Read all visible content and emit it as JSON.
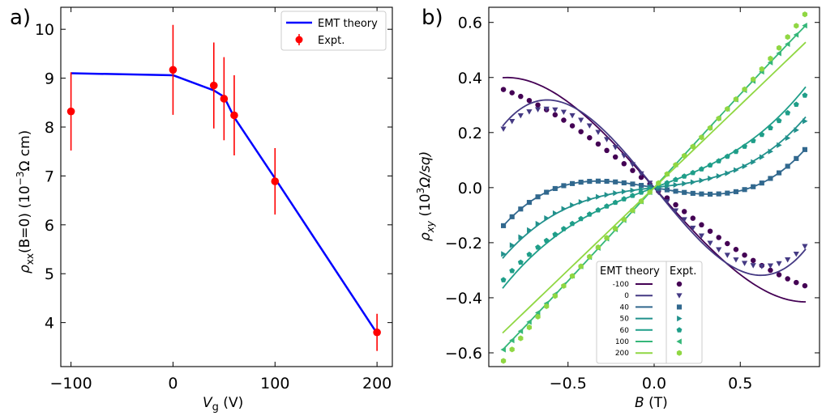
{
  "panel_a": {
    "label": "a)",
    "legend": {
      "theory_label": "EMT theory",
      "expt_label": "Expt."
    },
    "xlabel_main": "V",
    "xlabel_sub": "g",
    "xlabel_unit": " (V)",
    "ylabel_main": "ρ",
    "ylabel_sub": "xx",
    "ylabel_rest": "(B=0) (10",
    "ylabel_sup": "−3",
    "ylabel_unit": "Ω cm)",
    "x_ticks": [
      "−100",
      "0",
      "100",
      "200"
    ],
    "y_ticks": [
      "4",
      "5",
      "6",
      "7",
      "8",
      "9",
      "10"
    ]
  },
  "panel_b": {
    "label": "b)",
    "xlabel_main": "B",
    "xlabel_unit": " (T)",
    "ylabel_main": "ρ",
    "ylabel_sub": "xy",
    "ylabel_rest": " (10",
    "ylabel_sup": "3",
    "ylabel_unit": "Ω/sq)",
    "x_ticks": [
      "−0.5",
      "0.0",
      "0.5"
    ],
    "y_ticks": [
      "−0.6",
      "−0.4",
      "−0.2",
      "0.0",
      "0.2",
      "0.4",
      "0.6"
    ],
    "legend": {
      "theory_title": "EMT theory",
      "expt_title": "Expt.",
      "entries": [
        "-100",
        "0",
        "40",
        "50",
        "60",
        "100",
        "200"
      ]
    }
  },
  "chart_data": [
    {
      "type": "line",
      "title": "",
      "xlabel": "V_g (V)",
      "ylabel": "ρ_xx(B=0) (10^-3 Ω cm)",
      "xlim": [
        -110,
        215
      ],
      "ylim": [
        3.1,
        10.45
      ],
      "series": [
        {
          "name": "EMT theory",
          "color": "#0000ff",
          "x": [
            -100,
            0,
            40,
            50,
            60,
            100,
            200
          ],
          "y": [
            9.1,
            9.06,
            8.75,
            8.62,
            8.2,
            6.95,
            3.78
          ]
        },
        {
          "name": "Expt.",
          "color": "#ff0000",
          "x": [
            -100,
            0,
            40,
            50,
            60,
            100,
            200
          ],
          "y": [
            8.32,
            9.17,
            8.85,
            8.58,
            8.24,
            6.89,
            3.8
          ],
          "yerr": [
            0.8,
            0.92,
            0.88,
            0.85,
            0.82,
            0.68,
            0.38
          ]
        }
      ]
    },
    {
      "type": "scatter",
      "title": "",
      "xlabel": "B (T)",
      "ylabel": "ρ_xy (10^3 Ω/sq)",
      "xlim": [
        -0.96,
        0.96
      ],
      "ylim": [
        -0.65,
        0.655
      ],
      "theory_x_range": [
        -0.88,
        0.88
      ],
      "series": [
        {
          "name": "-100",
          "color": "#440154",
          "marker": "circle",
          "theory_coeffs": [
            -0.705,
            -0.01,
            0.313
          ],
          "expt_coeffs": [
            -0.5,
            0.0,
            0.121
          ]
        },
        {
          "name": "0",
          "color": "#443983",
          "marker": "tri_down",
          "theory_coeffs": [
            -0.77,
            0.0,
            0.667
          ],
          "expt_coeffs": [
            -0.68,
            0.0,
            0.57
          ]
        },
        {
          "name": "40",
          "color": "#31688e",
          "marker": "square",
          "theory_coeffs": [
            -0.11,
            0.0,
            0.35
          ],
          "expt_coeffs": [
            -0.11,
            0.0,
            0.35
          ]
        },
        {
          "name": "50",
          "color": "#21918c",
          "marker": "tri_right",
          "theory_coeffs": [
            0.075,
            0.0,
            0.28
          ],
          "expt_coeffs": [
            0.075,
            0.0,
            0.262
          ]
        },
        {
          "name": "60",
          "color": "#1f9e89",
          "marker": "pentagon",
          "theory_coeffs": [
            0.23,
            0.0,
            0.24
          ],
          "expt_coeffs": [
            0.23,
            0.0,
            0.2
          ]
        },
        {
          "name": "100",
          "color": "#35b779",
          "marker": "tri_left",
          "theory_coeffs": [
            0.682,
            0.0,
            -0.016
          ],
          "expt_coeffs": [
            0.674,
            0.0,
            -0.002
          ]
        },
        {
          "name": "200",
          "color": "#90d743",
          "marker": "hexagon",
          "theory_coeffs": [
            0.6,
            0.0,
            0.0
          ],
          "expt_coeffs": [
            0.658,
            0.0,
            0.08
          ]
        }
      ]
    }
  ]
}
